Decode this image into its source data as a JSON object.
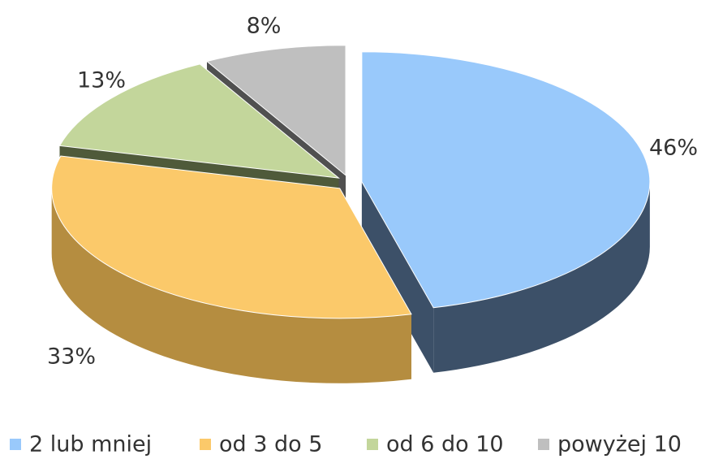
{
  "chart_data": {
    "type": "pie",
    "categories": [
      "2 lub mniej",
      "od 3 do 5",
      "od 6 do 10",
      "powyżej 10"
    ],
    "values": [
      46,
      33,
      13,
      8
    ],
    "value_labels": [
      "46%",
      "33%",
      "13%",
      "8%"
    ],
    "colors": [
      "#99c9fb",
      "#fbc96a",
      "#c3d69b",
      "#bfbfbf"
    ],
    "side_colors": [
      "#3c5068",
      "#b58d40",
      "#4f5a3a",
      "#505050"
    ],
    "legend": "bottom"
  }
}
